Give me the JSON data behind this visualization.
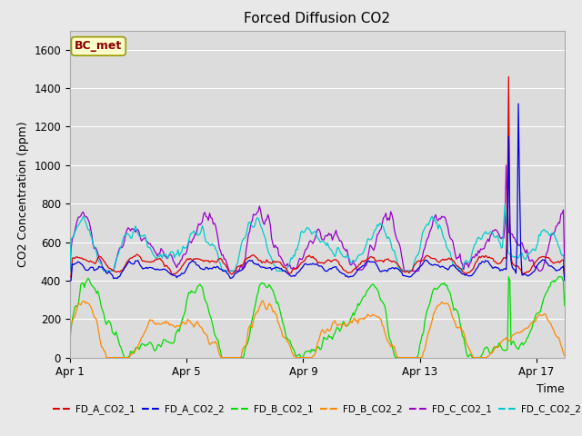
{
  "title": "Forced Diffusion CO2",
  "ylabel": "CO2 Concentration (ppm)",
  "xlabel": "Time",
  "annotation": "BC_met",
  "ylim": [
    0,
    1700
  ],
  "yticks": [
    0,
    200,
    400,
    600,
    800,
    1000,
    1200,
    1400,
    1600
  ],
  "fig_bg_color": "#e8e8e8",
  "plot_bg_color": "#dcdcdc",
  "series_colors": {
    "FD_A_CO2_1": "#dd0000",
    "FD_A_CO2_2": "#0000dd",
    "FD_B_CO2_1": "#00dd00",
    "FD_B_CO2_2": "#ff8800",
    "FD_C_CO2_1": "#9900cc",
    "FD_C_CO2_2": "#00cccc"
  },
  "n_points": 408,
  "xtick_dates": [
    "Apr 1",
    "Apr 5",
    "Apr 9",
    "Apr 13",
    "Apr 17"
  ],
  "xtick_positions": [
    0,
    96,
    192,
    288,
    384
  ]
}
